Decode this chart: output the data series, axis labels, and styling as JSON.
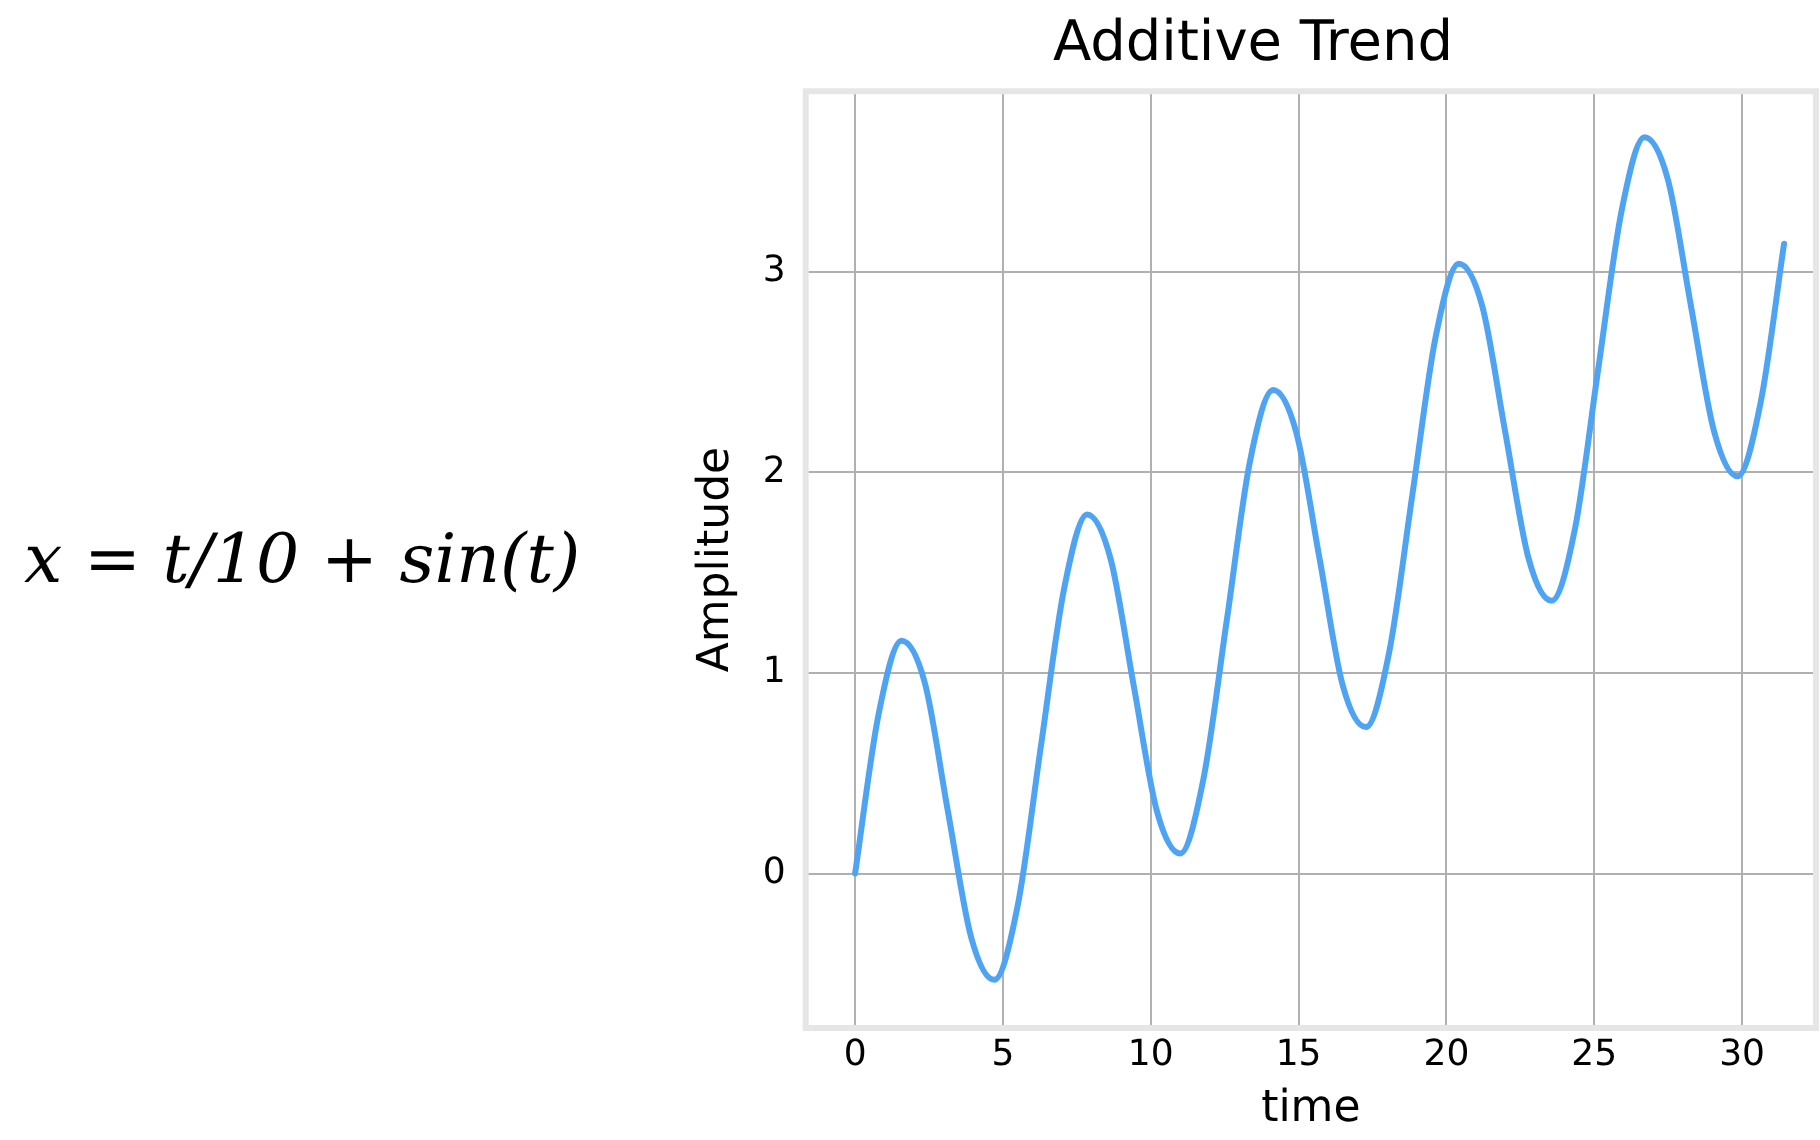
{
  "chart_data": {
    "type": "line",
    "title": "Additive Trend",
    "xlabel": "time",
    "ylabel": "Amplitude",
    "annotations": [
      "x = t/10 + sin(t)"
    ],
    "x": [
      0,
      0.79,
      1.57,
      2.36,
      3.14,
      3.93,
      4.71,
      5.5,
      6.28,
      7.07,
      7.85,
      8.64,
      9.42,
      10.21,
      11.0,
      11.78,
      12.57,
      13.35,
      14.14,
      14.92,
      15.71,
      16.49,
      17.28,
      18.06,
      18.85,
      19.63,
      20.42,
      21.21,
      21.99,
      22.78,
      23.56,
      24.35,
      25.13,
      25.92,
      26.7,
      27.49,
      28.27,
      29.06,
      29.85,
      30.63,
      31.42
    ],
    "series": [
      {
        "color": "#4ea4f2",
        "values": [
          0,
          0.79,
          1.16,
          0.95,
          0.31,
          -0.32,
          -0.53,
          -0.16,
          0.63,
          1.42,
          1.79,
          1.57,
          0.94,
          0.31,
          0.1,
          0.47,
          1.26,
          2.05,
          2.41,
          2.2,
          1.57,
          0.94,
          0.73,
          1.1,
          1.89,
          2.67,
          3.04,
          2.83,
          2.2,
          1.57,
          1.36,
          1.72,
          2.51,
          3.3,
          3.67,
          3.46,
          2.83,
          2.2,
          1.98,
          2.35,
          3.14
        ]
      }
    ],
    "xlim": [
      -1.67,
      32.5
    ],
    "ylim": [
      -0.77,
      3.9
    ],
    "xticks": [
      0,
      5,
      10,
      15,
      20,
      25,
      30
    ],
    "yticks": [
      0,
      1,
      2,
      3
    ],
    "grid": true,
    "legend": false,
    "marker": "none",
    "line_style": "solid"
  }
}
